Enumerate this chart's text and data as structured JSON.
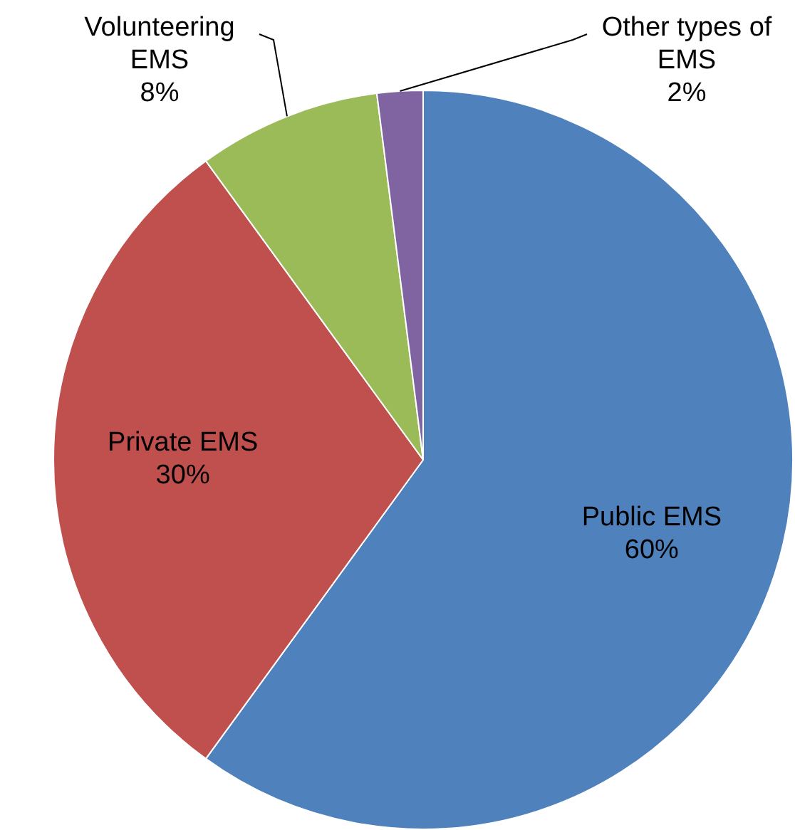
{
  "chart_data": {
    "type": "pie",
    "categories": [
      "Public EMS",
      "Private EMS",
      "Volunteering EMS",
      "Other types of EMS"
    ],
    "values": [
      60,
      30,
      8,
      2
    ],
    "colors": [
      "#4f81bd",
      "#c0504d",
      "#9bbb59",
      "#8064a2"
    ],
    "value_labels": [
      "60%",
      "30%",
      "8%",
      "2%"
    ],
    "legend": false
  }
}
